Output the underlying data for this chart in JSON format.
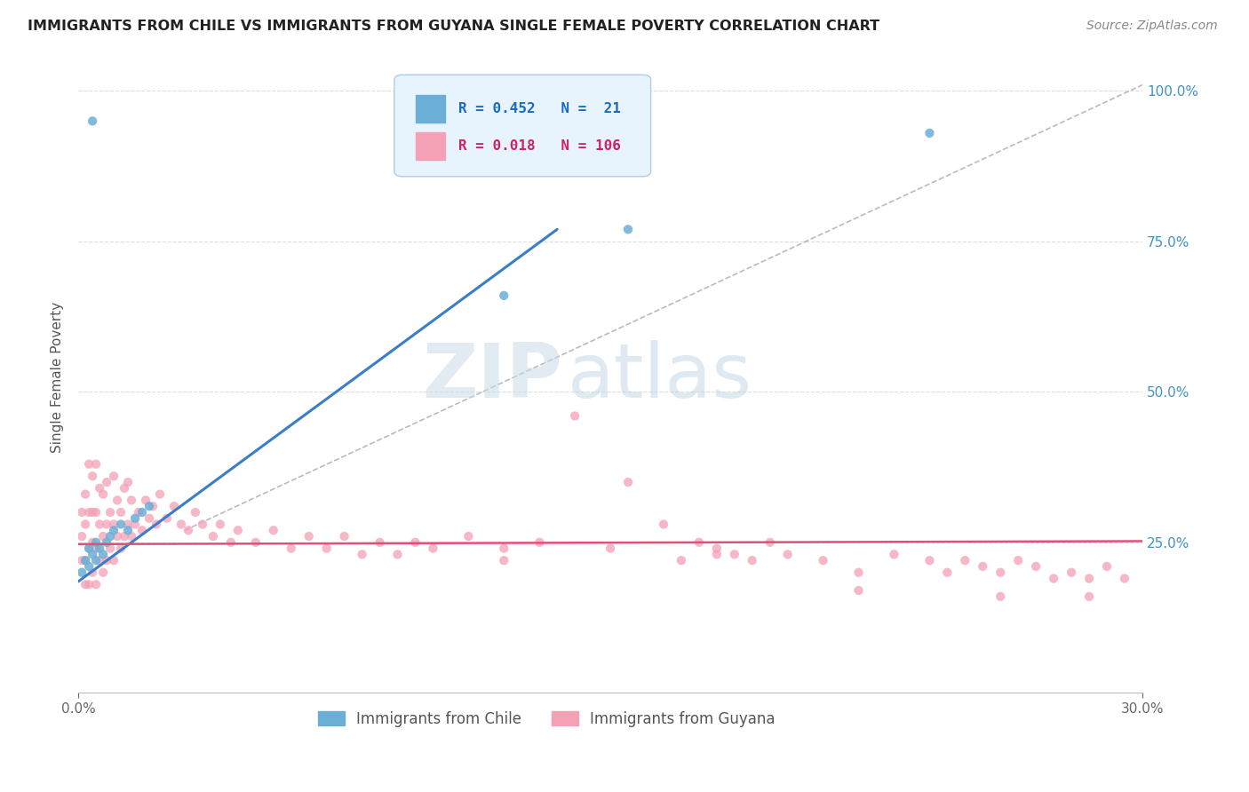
{
  "title": "IMMIGRANTS FROM CHILE VS IMMIGRANTS FROM GUYANA SINGLE FEMALE POVERTY CORRELATION CHART",
  "source": "Source: ZipAtlas.com",
  "ylabel": "Single Female Poverty",
  "chile_R": 0.452,
  "chile_N": 21,
  "guyana_R": 0.018,
  "guyana_N": 106,
  "chile_color": "#6baed6",
  "guyana_color": "#f4a0b5",
  "chile_line_color": "#3a7dc9",
  "guyana_line_color": "#e0507a",
  "xlim": [
    0.0,
    0.3
  ],
  "ylim": [
    0.0,
    1.05
  ],
  "ytick_vals": [
    0.25,
    0.5,
    0.75,
    1.0
  ],
  "ytick_labels": [
    "25.0%",
    "50.0%",
    "75.0%",
    "100.0%"
  ],
  "watermark_color": "#c8dff0",
  "legend_face": "#e8f4fd",
  "legend_edge": "#aaccee",
  "chile_points_x": [
    0.001,
    0.002,
    0.003,
    0.003,
    0.004,
    0.004,
    0.005,
    0.005,
    0.006,
    0.007,
    0.008,
    0.009,
    0.01,
    0.012,
    0.014,
    0.016,
    0.018,
    0.02,
    0.12,
    0.155,
    0.24
  ],
  "chile_points_y": [
    0.2,
    0.22,
    0.21,
    0.24,
    0.23,
    0.95,
    0.22,
    0.25,
    0.24,
    0.23,
    0.25,
    0.26,
    0.27,
    0.28,
    0.27,
    0.29,
    0.3,
    0.31,
    0.66,
    0.77,
    0.93
  ],
  "guyana_points_x": [
    0.001,
    0.001,
    0.001,
    0.002,
    0.002,
    0.002,
    0.002,
    0.003,
    0.003,
    0.003,
    0.003,
    0.004,
    0.004,
    0.004,
    0.004,
    0.005,
    0.005,
    0.005,
    0.005,
    0.006,
    0.006,
    0.006,
    0.007,
    0.007,
    0.007,
    0.008,
    0.008,
    0.008,
    0.009,
    0.009,
    0.01,
    0.01,
    0.01,
    0.011,
    0.011,
    0.012,
    0.012,
    0.013,
    0.013,
    0.014,
    0.014,
    0.015,
    0.015,
    0.016,
    0.017,
    0.018,
    0.019,
    0.02,
    0.021,
    0.022,
    0.023,
    0.025,
    0.027,
    0.029,
    0.031,
    0.033,
    0.035,
    0.038,
    0.04,
    0.043,
    0.045,
    0.05,
    0.055,
    0.06,
    0.065,
    0.07,
    0.075,
    0.08,
    0.085,
    0.09,
    0.095,
    0.1,
    0.11,
    0.12,
    0.13,
    0.14,
    0.155,
    0.165,
    0.17,
    0.175,
    0.18,
    0.185,
    0.19,
    0.195,
    0.2,
    0.21,
    0.22,
    0.23,
    0.24,
    0.245,
    0.25,
    0.255,
    0.26,
    0.265,
    0.27,
    0.275,
    0.28,
    0.285,
    0.29,
    0.295,
    0.15,
    0.18,
    0.12,
    0.22,
    0.26,
    0.285
  ],
  "guyana_points_y": [
    0.22,
    0.26,
    0.3,
    0.18,
    0.22,
    0.28,
    0.33,
    0.18,
    0.24,
    0.3,
    0.38,
    0.2,
    0.25,
    0.3,
    0.36,
    0.18,
    0.24,
    0.3,
    0.38,
    0.22,
    0.28,
    0.34,
    0.2,
    0.26,
    0.33,
    0.22,
    0.28,
    0.35,
    0.24,
    0.3,
    0.22,
    0.28,
    0.36,
    0.26,
    0.32,
    0.24,
    0.3,
    0.26,
    0.34,
    0.28,
    0.35,
    0.26,
    0.32,
    0.28,
    0.3,
    0.27,
    0.32,
    0.29,
    0.31,
    0.28,
    0.33,
    0.29,
    0.31,
    0.28,
    0.27,
    0.3,
    0.28,
    0.26,
    0.28,
    0.25,
    0.27,
    0.25,
    0.27,
    0.24,
    0.26,
    0.24,
    0.26,
    0.23,
    0.25,
    0.23,
    0.25,
    0.24,
    0.26,
    0.24,
    0.25,
    0.46,
    0.35,
    0.28,
    0.22,
    0.25,
    0.24,
    0.23,
    0.22,
    0.25,
    0.23,
    0.22,
    0.2,
    0.23,
    0.22,
    0.2,
    0.22,
    0.21,
    0.2,
    0.22,
    0.21,
    0.19,
    0.2,
    0.19,
    0.21,
    0.19,
    0.24,
    0.23,
    0.22,
    0.17,
    0.16,
    0.16
  ],
  "chile_line_x0": 0.0,
  "chile_line_y0": 0.185,
  "chile_line_x1": 0.135,
  "chile_line_y1": 0.77,
  "guyana_line_x0": 0.0,
  "guyana_line_y0": 0.247,
  "guyana_line_x1": 0.3,
  "guyana_line_y1": 0.252,
  "dash_line_x0": 0.03,
  "dash_line_y0": 0.27,
  "dash_line_x1": 0.3,
  "dash_line_y1": 1.01
}
